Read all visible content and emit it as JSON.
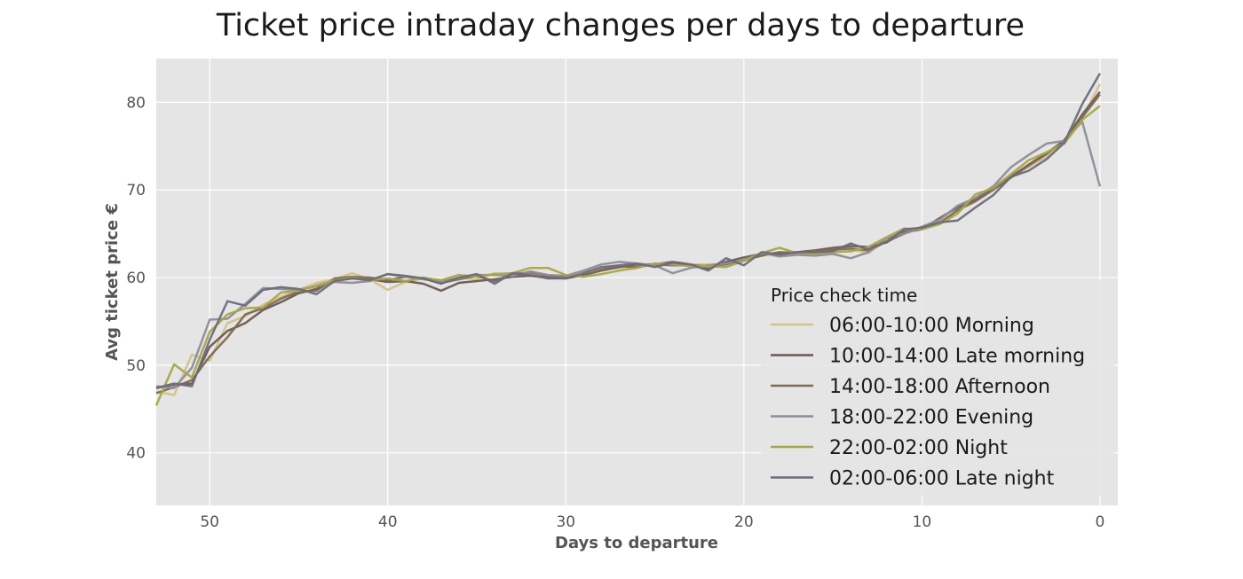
{
  "chart_data": {
    "type": "line",
    "title": "Ticket price intraday changes per days to departure",
    "xlabel": "Days to departure",
    "ylabel": "Avg ticket price €",
    "xlim": [
      53,
      -1
    ],
    "ylim": [
      34,
      85
    ],
    "x_ticks": [
      50,
      40,
      30,
      20,
      10,
      0
    ],
    "y_ticks": [
      40,
      50,
      60,
      70,
      80
    ],
    "grid": true,
    "background": "#e5e5e5",
    "legend": {
      "title": "Price check time",
      "placement": "lower-right"
    },
    "x": [
      53,
      52,
      51,
      50,
      49,
      48,
      47,
      46,
      45,
      44,
      43,
      42,
      41,
      40,
      39,
      38,
      37,
      36,
      35,
      34,
      33,
      32,
      31,
      30,
      29,
      28,
      27,
      26,
      25,
      24,
      23,
      22,
      21,
      20,
      19,
      18,
      17,
      16,
      15,
      14,
      13,
      12,
      11,
      10,
      9,
      8,
      7,
      6,
      5,
      4,
      3,
      2,
      1,
      0
    ],
    "series": [
      {
        "name": "06:00-10:00 Morning",
        "color": "#d4c18a",
        "values": [
          47.0,
          46.6,
          51.2,
          50.5,
          54.8,
          55.6,
          56.9,
          57.8,
          58.6,
          59.4,
          59.8,
          60.5,
          59.8,
          58.6,
          59.5,
          59.9,
          59.6,
          60.0,
          59.8,
          60.5,
          60.3,
          60.4,
          60.0,
          60.2,
          60.7,
          61.0,
          61.1,
          61.3,
          61.6,
          61.5,
          61.5,
          61.5,
          61.6,
          61.9,
          62.6,
          62.7,
          62.8,
          62.8,
          63.0,
          63.2,
          62.8,
          64.2,
          65.4,
          65.6,
          66.5,
          67.5,
          69.0,
          70.3,
          71.7,
          72.6,
          73.8,
          75.5,
          78.2,
          82.1
        ]
      },
      {
        "name": "10:00-14:00 Late morning",
        "color": "#6a5a52",
        "values": [
          47.4,
          47.8,
          47.9,
          52.1,
          53.9,
          54.8,
          56.3,
          57.2,
          58.2,
          58.7,
          59.7,
          59.9,
          59.8,
          59.5,
          59.6,
          59.3,
          58.5,
          59.4,
          59.6,
          59.8,
          60.1,
          60.2,
          60.0,
          59.9,
          60.3,
          60.8,
          61.2,
          61.5,
          61.5,
          61.8,
          61.5,
          61.0,
          61.8,
          62.3,
          62.7,
          62.8,
          62.9,
          63.1,
          63.4,
          63.6,
          63.5,
          64.0,
          65.2,
          65.5,
          66.8,
          68.0,
          68.9,
          70.2,
          71.5,
          72.9,
          74.2,
          75.6,
          78.6,
          81.2
        ]
      },
      {
        "name": "14:00-18:00 Afternoon",
        "color": "#7e6a52",
        "values": [
          46.8,
          47.5,
          48.3,
          51.0,
          53.2,
          55.8,
          56.5,
          57.6,
          58.4,
          58.5,
          59.9,
          60.1,
          60.0,
          59.7,
          60.1,
          59.9,
          59.4,
          59.8,
          60.2,
          59.6,
          60.4,
          60.6,
          60.2,
          60.1,
          60.2,
          60.9,
          61.3,
          61.2,
          61.5,
          61.4,
          61.4,
          61.3,
          61.5,
          62.0,
          62.5,
          62.9,
          62.8,
          63.0,
          63.2,
          63.3,
          63.1,
          64.1,
          65.0,
          65.7,
          66.2,
          67.7,
          68.7,
          70.0,
          71.4,
          72.8,
          74.1,
          75.7,
          78.3,
          80.9
        ]
      },
      {
        "name": "18:00-22:00 Evening",
        "color": "#8e8c9a",
        "values": [
          47.6,
          47.4,
          49.7,
          55.2,
          55.3,
          57.0,
          58.8,
          58.7,
          58.6,
          59.0,
          59.5,
          59.4,
          59.6,
          60.4,
          60.1,
          59.8,
          59.6,
          59.9,
          60.3,
          60.3,
          60.2,
          60.7,
          60.3,
          60.2,
          60.8,
          61.5,
          61.8,
          61.6,
          61.4,
          60.5,
          61.1,
          61.4,
          61.6,
          62.0,
          62.8,
          62.4,
          62.6,
          62.5,
          62.7,
          62.2,
          62.9,
          64.5,
          65.0,
          65.8,
          66.6,
          68.2,
          69.1,
          70.4,
          72.6,
          74.0,
          75.3,
          75.6,
          77.8,
          70.4
        ]
      },
      {
        "name": "22:00-02:00 Night",
        "color": "#a6a64a",
        "values": [
          45.4,
          50.1,
          48.6,
          53.8,
          55.8,
          56.5,
          56.6,
          58.3,
          58.5,
          59.1,
          59.7,
          60.0,
          59.7,
          59.9,
          59.6,
          60.0,
          59.7,
          60.3,
          60.1,
          60.4,
          60.5,
          61.1,
          61.1,
          60.3,
          60.1,
          60.4,
          60.8,
          61.1,
          61.6,
          61.5,
          61.3,
          61.3,
          61.2,
          61.9,
          62.8,
          63.4,
          62.8,
          62.7,
          62.9,
          63.0,
          63.5,
          64.6,
          65.6,
          65.5,
          66.1,
          67.3,
          69.5,
          70.2,
          71.8,
          73.4,
          74.3,
          75.3,
          78.0,
          79.6
        ]
      },
      {
        "name": "02:00-06:00 Late night",
        "color": "#6e6a7c",
        "values": [
          47.4,
          47.9,
          47.6,
          52.9,
          57.3,
          56.8,
          58.6,
          58.9,
          58.7,
          58.1,
          59.6,
          59.9,
          59.7,
          60.4,
          60.2,
          59.9,
          59.3,
          60.0,
          60.4,
          59.3,
          60.5,
          60.3,
          59.9,
          59.9,
          60.5,
          61.2,
          61.4,
          61.6,
          61.2,
          61.7,
          61.5,
          60.8,
          62.2,
          61.4,
          62.9,
          62.6,
          62.9,
          62.9,
          63.0,
          63.9,
          63.2,
          64.1,
          65.5,
          65.7,
          66.3,
          66.5,
          68.0,
          69.4,
          71.5,
          72.2,
          73.5,
          75.4,
          79.8,
          83.3
        ]
      }
    ]
  }
}
